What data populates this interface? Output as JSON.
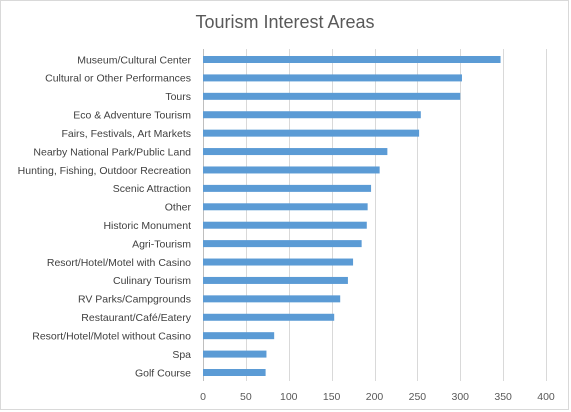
{
  "chart_data": {
    "type": "bar",
    "orientation": "horizontal",
    "title": "Tourism Interest Areas",
    "categories": [
      "Museum/Cultural Center",
      "Cultural or Other Performances",
      "Tours",
      "Eco & Adventure Tourism",
      "Fairs, Festivals, Art Markets",
      "Nearby National Park/Public Land",
      "Hunting, Fishing, Outdoor Recreation",
      "Scenic Attraction",
      "Other",
      "Historic Monument",
      "Agri-Tourism",
      "Resort/Hotel/Motel with Casino",
      "Culinary Tourism",
      "RV Parks/Campgrounds",
      "Restaurant/Café/Eatery",
      "Resort/Hotel/Motel without Casino",
      "Spa",
      "Golf Course"
    ],
    "values": [
      347,
      302,
      300,
      254,
      252,
      215,
      206,
      196,
      192,
      191,
      185,
      175,
      169,
      160,
      153,
      83,
      74,
      73
    ],
    "xlim": [
      0,
      400
    ],
    "xticks": [
      "0",
      "50",
      "100",
      "150",
      "200",
      "250",
      "300",
      "350",
      "400"
    ],
    "grid": true,
    "bar_color": "#5b9bd5",
    "grid_color": "#d9d9d9"
  }
}
